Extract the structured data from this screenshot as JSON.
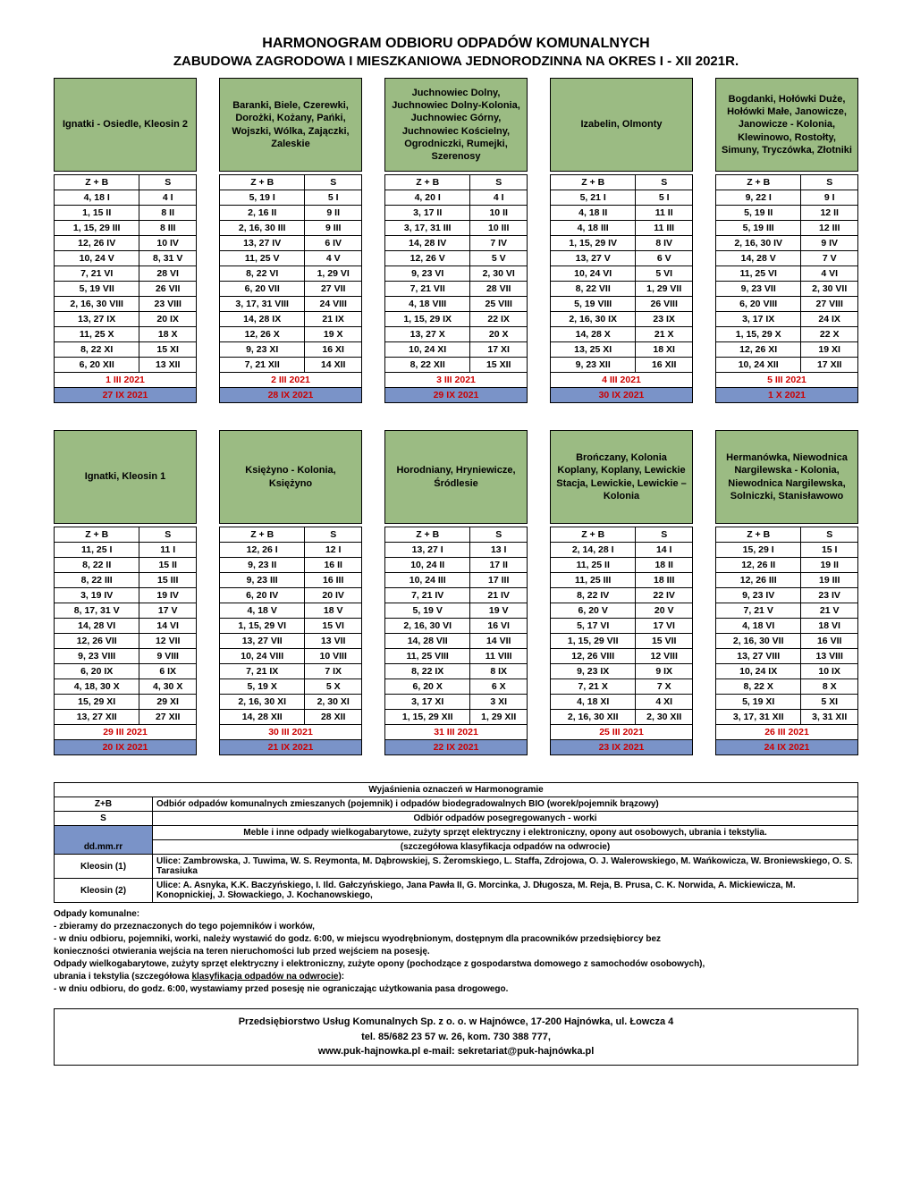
{
  "title": "HARMONOGRAM ODBIORU ODPADÓW KOMUNALNYCH",
  "subtitle": "ZABUDOWA ZAGRODOWA I MIESZKANIOWA JEDNORODZINNA NA OKRES I - XII 2021R.",
  "th_zb": "Z + B",
  "th_s": "S",
  "row1": [
    {
      "name": "Ignatki - Osiedle, Kleosin 2",
      "rows": [
        [
          "4, 18 I",
          "4 I"
        ],
        [
          "1, 15 II",
          "8 II"
        ],
        [
          "1, 15, 29 III",
          "8 III"
        ],
        [
          "12, 26 IV",
          "10 IV"
        ],
        [
          "10, 24 V",
          "8, 31 V"
        ],
        [
          "7, 21 VI",
          "28 VI"
        ],
        [
          "5, 19 VII",
          "26 VII"
        ],
        [
          "2, 16, 30 VIII",
          "23 VIII"
        ],
        [
          "13, 27 IX",
          "20 IX"
        ],
        [
          "11, 25 X",
          "18 X"
        ],
        [
          "8, 22 XI",
          "15 XI"
        ],
        [
          "6, 20 XII",
          "13 XII"
        ]
      ],
      "red": "1 III 2021",
      "blue": "27 IX 2021"
    },
    {
      "name": "Baranki, Biele, Czerewki, Dorożki, Kożany, Pańki, Wojszki, Wólka, Zajączki, Zaleskie",
      "rows": [
        [
          "5, 19 I",
          "5 I"
        ],
        [
          "2, 16 II",
          "9 II"
        ],
        [
          "2, 16, 30 III",
          "9 III"
        ],
        [
          "13, 27 IV",
          "6 IV"
        ],
        [
          "11, 25 V",
          "4 V"
        ],
        [
          "8, 22 VI",
          "1, 29 VI"
        ],
        [
          "6, 20 VII",
          "27 VII"
        ],
        [
          "3, 17, 31 VIII",
          "24 VIII"
        ],
        [
          "14, 28 IX",
          "21 IX"
        ],
        [
          "12, 26 X",
          "19 X"
        ],
        [
          "9, 23 XI",
          "16 XI"
        ],
        [
          "7, 21 XII",
          "14 XII"
        ]
      ],
      "red": "2 III 2021",
      "blue": "28 IX 2021"
    },
    {
      "name": "Juchnowiec Dolny, Juchnowiec Dolny-Kolonia, Juchnowiec Górny, Juchnowiec Kościelny, Ogrodniczki, Rumejki, Szerenosy",
      "rows": [
        [
          "4, 20 I",
          "4 I"
        ],
        [
          "3, 17 II",
          "10 II"
        ],
        [
          "3, 17, 31 III",
          "10 III"
        ],
        [
          "14, 28 IV",
          "7 IV"
        ],
        [
          "12, 26 V",
          "5 V"
        ],
        [
          "9, 23 VI",
          "2, 30 VI"
        ],
        [
          "7, 21 VII",
          "28 VII"
        ],
        [
          "4, 18 VIII",
          "25 VIII"
        ],
        [
          "1, 15, 29 IX",
          "22 IX"
        ],
        [
          "13, 27 X",
          "20 X"
        ],
        [
          "10, 24 XI",
          "17 XI"
        ],
        [
          "8, 22 XII",
          "15 XII"
        ]
      ],
      "red": "3 III 2021",
      "blue": "29 IX 2021"
    },
    {
      "name": "Izabelin, Olmonty",
      "rows": [
        [
          "5, 21 I",
          "5 I"
        ],
        [
          "4, 18 II",
          "11 II"
        ],
        [
          "4, 18 III",
          "11 III"
        ],
        [
          "1, 15, 29 IV",
          "8 IV"
        ],
        [
          "13, 27 V",
          "6 V"
        ],
        [
          "10, 24 VI",
          "5 VI"
        ],
        [
          "8, 22 VII",
          "1, 29 VII"
        ],
        [
          "5, 19 VIII",
          "26 VIII"
        ],
        [
          "2, 16, 30 IX",
          "23 IX"
        ],
        [
          "14, 28 X",
          "21 X"
        ],
        [
          "13, 25 XI",
          "18 XI"
        ],
        [
          "9, 23 XII",
          "16 XII"
        ]
      ],
      "red": "4 III 2021",
      "blue": "30 IX 2021"
    },
    {
      "name": "Bogdanki, Hołówki Duże, Hołówki Małe, Janowicze, Janowicze - Kolonia, Klewinowo, Rostołty, Simuny, Tryczówka, Złotniki",
      "rows": [
        [
          "9, 22 I",
          "9 I"
        ],
        [
          "5, 19 II",
          "12 II"
        ],
        [
          "5, 19 III",
          "12 III"
        ],
        [
          "2, 16, 30 IV",
          "9 IV"
        ],
        [
          "14, 28 V",
          "7 V"
        ],
        [
          "11, 25 VI",
          "4 VI"
        ],
        [
          "9, 23 VII",
          "2, 30 VII"
        ],
        [
          "6, 20 VIII",
          "27 VIII"
        ],
        [
          "3, 17 IX",
          "24 IX"
        ],
        [
          "1, 15, 29 X",
          "22 X"
        ],
        [
          "12, 26 XI",
          "19 XI"
        ],
        [
          "10, 24 XII",
          "17 XII"
        ]
      ],
      "red": "5 III 2021",
      "blue": "1 X 2021"
    }
  ],
  "row2": [
    {
      "name": "Ignatki, Kleosin 1",
      "rows": [
        [
          "11, 25 I",
          "11 I"
        ],
        [
          "8, 22 II",
          "15 II"
        ],
        [
          "8, 22 III",
          "15 III"
        ],
        [
          "3, 19 IV",
          "19 IV"
        ],
        [
          "8, 17, 31 V",
          "17 V"
        ],
        [
          "14, 28 VI",
          "14 VI"
        ],
        [
          "12, 26 VII",
          "12 VII"
        ],
        [
          "9, 23 VIII",
          "9 VIII"
        ],
        [
          "6, 20 IX",
          "6 IX"
        ],
        [
          "4, 18, 30 X",
          "4, 30 X"
        ],
        [
          "15, 29 XI",
          "29 XI"
        ],
        [
          "13, 27 XII",
          "27 XII"
        ]
      ],
      "red": "29 III 2021",
      "blue": "20 IX 2021"
    },
    {
      "name": "Księżyno - Kolonia, Księżyno",
      "rows": [
        [
          "12, 26 I",
          "12 I"
        ],
        [
          "9, 23 II",
          "16 II"
        ],
        [
          "9, 23 III",
          "16 III"
        ],
        [
          "6, 20 IV",
          "20 IV"
        ],
        [
          "4, 18 V",
          "18 V"
        ],
        [
          "1, 15, 29 VI",
          "15 VI"
        ],
        [
          "13, 27 VII",
          "13 VII"
        ],
        [
          "10, 24 VIII",
          "10 VIII"
        ],
        [
          "7, 21 IX",
          "7 IX"
        ],
        [
          "5, 19 X",
          "5 X"
        ],
        [
          "2, 16, 30 XI",
          "2, 30 XI"
        ],
        [
          "14, 28 XII",
          "28 XII"
        ]
      ],
      "red": "30 III 2021",
      "blue": "21 IX 2021"
    },
    {
      "name": "Horodniany, Hryniewicze, Śródlesie",
      "rows": [
        [
          "13, 27 I",
          "13 I"
        ],
        [
          "10, 24 II",
          "17 II"
        ],
        [
          "10, 24 III",
          "17 III"
        ],
        [
          "7, 21 IV",
          "21 IV"
        ],
        [
          "5, 19 V",
          "19 V"
        ],
        [
          "2, 16, 30 VI",
          "16 VI"
        ],
        [
          "14, 28 VII",
          "14 VII"
        ],
        [
          "11, 25 VIII",
          "11 VIII"
        ],
        [
          "8, 22 IX",
          "8 IX"
        ],
        [
          "6, 20 X",
          "6 X"
        ],
        [
          "3, 17 XI",
          "3 XI"
        ],
        [
          "1, 15, 29 XII",
          "1, 29 XII"
        ]
      ],
      "red": "31 III 2021",
      "blue": "22 IX 2021"
    },
    {
      "name": "Brończany, Kolonia Koplany, Koplany, Lewickie Stacja, Lewickie, Lewickie – Kolonia",
      "rows": [
        [
          "2, 14, 28 I",
          "14 I"
        ],
        [
          "11, 25 II",
          "18 II"
        ],
        [
          "11, 25 III",
          "18 III"
        ],
        [
          "8, 22 IV",
          "22 IV"
        ],
        [
          "6, 20 V",
          "20 V"
        ],
        [
          "5, 17 VI",
          "17 VI"
        ],
        [
          "1, 15, 29 VII",
          "15 VII"
        ],
        [
          "12, 26 VIII",
          "12 VIII"
        ],
        [
          "9, 23 IX",
          "9 IX"
        ],
        [
          "7, 21 X",
          "7 X"
        ],
        [
          "4, 18 XI",
          "4 XI"
        ],
        [
          "2, 16, 30 XII",
          "2, 30 XII"
        ]
      ],
      "red": "25 III 2021",
      "blue": "23 IX 2021"
    },
    {
      "name": "Hermanówka, Niewodnica Nargilewska - Kolonia,  Niewodnica Nargilewska, Solniczki, Stanisławowo",
      "rows": [
        [
          "15, 29 I",
          "15 I"
        ],
        [
          "12, 26 II",
          "19 II"
        ],
        [
          "12, 26 III",
          "19 III"
        ],
        [
          "9, 23 IV",
          "23 IV"
        ],
        [
          "7, 21 V",
          "21 V"
        ],
        [
          "4, 18 VI",
          "18 VI"
        ],
        [
          "2, 16, 30 VII",
          "16 VII"
        ],
        [
          "13, 27 VIII",
          "13 VIII"
        ],
        [
          "10, 24 IX",
          "10 IX"
        ],
        [
          "8, 22 X",
          "8 X"
        ],
        [
          "5, 19 XI",
          "5 XI"
        ],
        [
          "3, 17, 31 XII",
          "3, 31 XII"
        ]
      ],
      "red": "26 III 2021",
      "blue": "24 IX 2021"
    }
  ],
  "legend": {
    "hdr": "Wyjaśnienia oznaczeń w Harmonogramie",
    "zb": "Odbiór odpadów komunalnych zmieszanych (pojemnik) i odpadów biodegradowalnych BIO (worek/pojemnik brązowy)",
    "zb_key": "Z+B",
    "s": "Odbiór odpadów posegregowanych - worki",
    "s_key": "S",
    "blue1": "Meble i inne odpady wielkogabarytowe, zużyty sprzęt elektryczny i elektroniczny, opony aut osobowych, ubrania i tekstylia.",
    "blue2": "(szczegółowa klasyfikacja odpadów na odwrocie)",
    "blue_key": "dd.mm.rr",
    "k1_key": "Kleosin (1)",
    "k1": "Ulice: Zambrowska, J. Tuwima, W. S. Reymonta, M. Dąbrowskiej, S. Żeromskiego, L. Staffa, Zdrojowa, O. J. Walerowskiego, M. Wańkowicza, W. Broniewskiego, O. S. Tarasiuka",
    "k2_key": "Kleosin (2)",
    "k2": "Ulice: A. Asnyka, K.K. Baczyńskiego, I. Ild. Gałczyńskiego, Jana Pawła II,  G. Morcinka, J. Długosza, M. Reja, B. Prusa, C. K. Norwida, A. Mickiewicza, M. Konopnickiej, J. Słowackiego, J. Kochanowskiego,"
  },
  "notes": {
    "n0": "Odpady komunalne:",
    "n1": "- zbieramy do przeznaczonych do tego pojemników i worków,",
    "n2": "- w  dniu  odbioru, pojemniki, worki, należy wystawić do  godz.  6:00, w miejscu wyodrębnionym, dostępnym dla pracowników przedsiębiorcy bez",
    "n3": "konieczności otwierania wejścia na teren nieruchomości lub przed wejściem na posesję.",
    "n4": "Odpady wielkogabarytowe, zużyty sprzęt elektryczny i elektroniczny, zużyte opony (pochodzące z gospodarstwa domowego z samochodów osobowych),",
    "n5a": "ubrania i tekstylia (szczegółowa ",
    "n5b": "klasyfikacja odpadów na odwrocie",
    "n5c": "):",
    "n6": "- w dniu odbioru, do godz. 6:00, wystawiamy przed posesję nie ograniczając użytkowania pasa drogowego."
  },
  "footer": {
    "l1": "Przedsiębiorstwo Usług Komunalnych Sp. z o. o. w Hajnówce, 17-200 Hajnówka, ul. Łowcza 4",
    "l2": "tel. 85/682 23 57 w. 26, kom. 730 388 777,",
    "l3": "www.puk-hajnowka.pl  e-mail: sekretariat@puk-hajnówka.pl"
  }
}
